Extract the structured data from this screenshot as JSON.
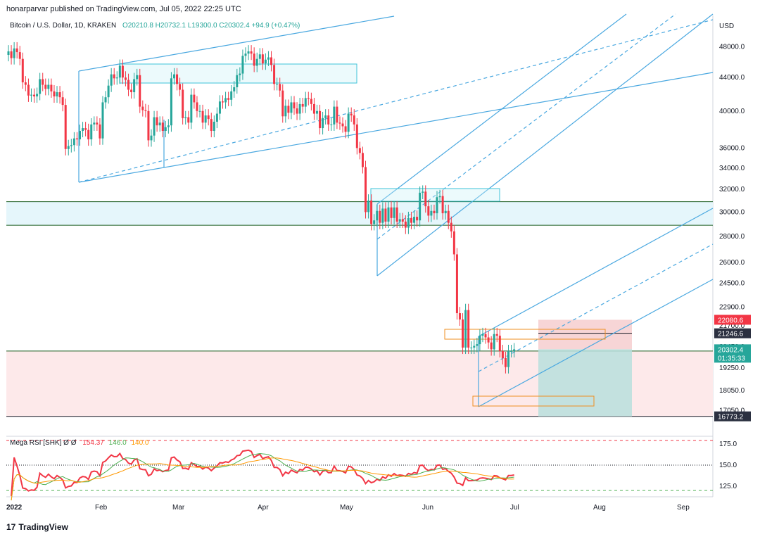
{
  "header": {
    "published": "honarparvar published on TradingView.com, Jul 05, 2022 22:25 UTC"
  },
  "legend": {
    "symbol": "Bitcoin / U.S. Dollar, 1D, KRAKEN",
    "ohlc": "O20210.8  H20732.1  L19300.0  C20302.4  +94.9 (+0.47%)"
  },
  "indicator": {
    "name": "Mega RSI [SHK]",
    "icons": "Ø  Ø",
    "v1": "154.37",
    "v2": "146.0",
    "v3": "140.0"
  },
  "footer": {
    "brand": "TradingView",
    "logo": "17"
  },
  "colors": {
    "up": "#26a69a",
    "down": "#f23645",
    "trend": "#4aa8e0",
    "zone_box": "#3ec3d8",
    "orange_box": "#ef8f22",
    "support_fill": "#e5f6fb",
    "resistance_fill": "#fde9ea",
    "hline": "#1b5e20",
    "tag_dark": "#2b3040",
    "tag_red": "#f23645",
    "tag_green": "#26a69a"
  },
  "chart_data": {
    "type": "candlestick",
    "title": "Bitcoin / U.S. Dollar, 1D, KRAKEN",
    "y_unit": "USD",
    "y_scale": "log",
    "ylim": [
      16300,
      52500
    ],
    "y_ticks": [
      "48000.0",
      "44000.0",
      "40000.0",
      "36000.0",
      "34000.0",
      "32000.0",
      "30000.0",
      "28000.0",
      "26000.0",
      "24500.0",
      "22900.0",
      "21700.0",
      "20450.0",
      "19250.0",
      "18050.0",
      "17050.0"
    ],
    "x_ticks": [
      "2022",
      "Feb",
      "Mar",
      "Apr",
      "May",
      "Jun",
      "Jul",
      "Aug",
      "Sep"
    ],
    "price_tags": [
      {
        "label": "USD"
      },
      {
        "value": "22080.6",
        "style": "red"
      },
      {
        "value": "21246.6",
        "style": "dark"
      },
      {
        "value": "20302.4",
        "sub": "01:35:33",
        "style": "green"
      },
      {
        "value": "16773.2",
        "style": "dark"
      }
    ],
    "close_prices": [
      47400,
      46500,
      47800,
      47300,
      46400,
      43400,
      43100,
      41800,
      41900,
      41700,
      42000,
      43800,
      43100,
      42600,
      43100,
      42300,
      41700,
      42200,
      41600,
      40700,
      35900,
      36200,
      36300,
      37000,
      36900,
      37800,
      38100,
      37900,
      36900,
      38500,
      38700,
      38500,
      37000,
      41000,
      41600,
      43000,
      44400,
      43900,
      44000,
      45500,
      44000,
      43700,
      42500,
      42200,
      43800,
      44300,
      40500,
      40100,
      40000,
      36800,
      37300,
      39300,
      38400,
      38700,
      37800,
      38200,
      38400,
      43900,
      44400,
      43200,
      42500,
      39200,
      39300,
      38700,
      41900,
      41000,
      40000,
      40000,
      38700,
      39500,
      39100,
      37800,
      38800,
      39700,
      41100,
      41000,
      41500,
      41300,
      42300,
      42800,
      44300,
      44500,
      46800,
      47100,
      47400,
      47100,
      45500,
      46400,
      47000,
      45800,
      46300,
      46600,
      45600,
      43200,
      43200,
      42400,
      39400,
      40600,
      39800,
      41000,
      40300,
      39700,
      40800,
      40500,
      41500,
      41400,
      40800,
      39700,
      40000,
      38100,
      39200,
      39500,
      38500,
      38500,
      40500,
      38700,
      38600,
      38300,
      37700,
      39700,
      39500,
      38500,
      36000,
      35500,
      34100,
      30000,
      31000,
      29000,
      29300,
      30100,
      29100,
      30300,
      29200,
      30400,
      29500,
      30400,
      29200,
      29400,
      29200,
      28700,
      29500,
      29100,
      29600,
      29300,
      31700,
      31800,
      30500,
      29700,
      30100,
      29900,
      31300,
      31400,
      29900,
      30100,
      29100,
      28400,
      26600,
      22500,
      22100,
      20400,
      22700,
      20400,
      20400,
      20500,
      20600,
      21100,
      21200,
      21000,
      20700,
      20300,
      21200,
      21100,
      20200,
      19800,
      19300,
      20200,
      20200,
      20300
    ]
  }
}
